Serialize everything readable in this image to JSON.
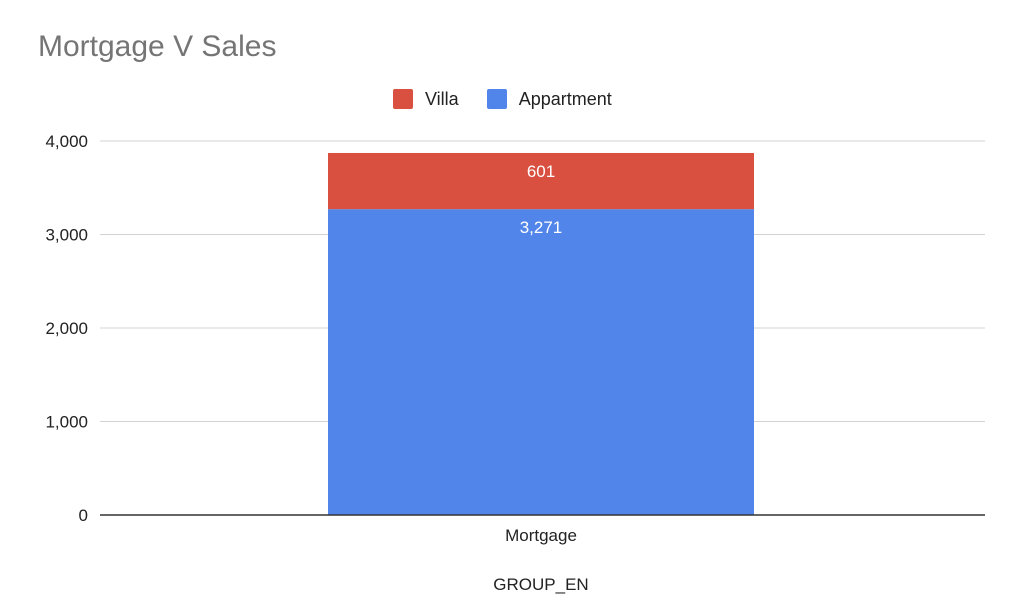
{
  "chart_data": {
    "type": "bar",
    "stacked": true,
    "title": "Mortgage V Sales",
    "xlabel": "GROUP_EN",
    "ylabel": "",
    "categories": [
      "Mortgage"
    ],
    "series": [
      {
        "name": "Villa",
        "values": [
          601
        ],
        "color": "#d95040",
        "data_labels": [
          "601"
        ]
      },
      {
        "name": "Appartment",
        "values": [
          3271
        ],
        "color": "#5285ea",
        "data_labels": [
          "3,271"
        ]
      }
    ],
    "stack_order_bottom_to_top": [
      "Appartment",
      "Villa"
    ],
    "ylim": [
      0,
      4000
    ],
    "yticks": [
      0,
      1000,
      2000,
      3000,
      4000
    ],
    "ytick_labels": [
      "0",
      "1,000",
      "2,000",
      "3,000",
      "4,000"
    ],
    "grid": true,
    "legend_position": "top"
  }
}
